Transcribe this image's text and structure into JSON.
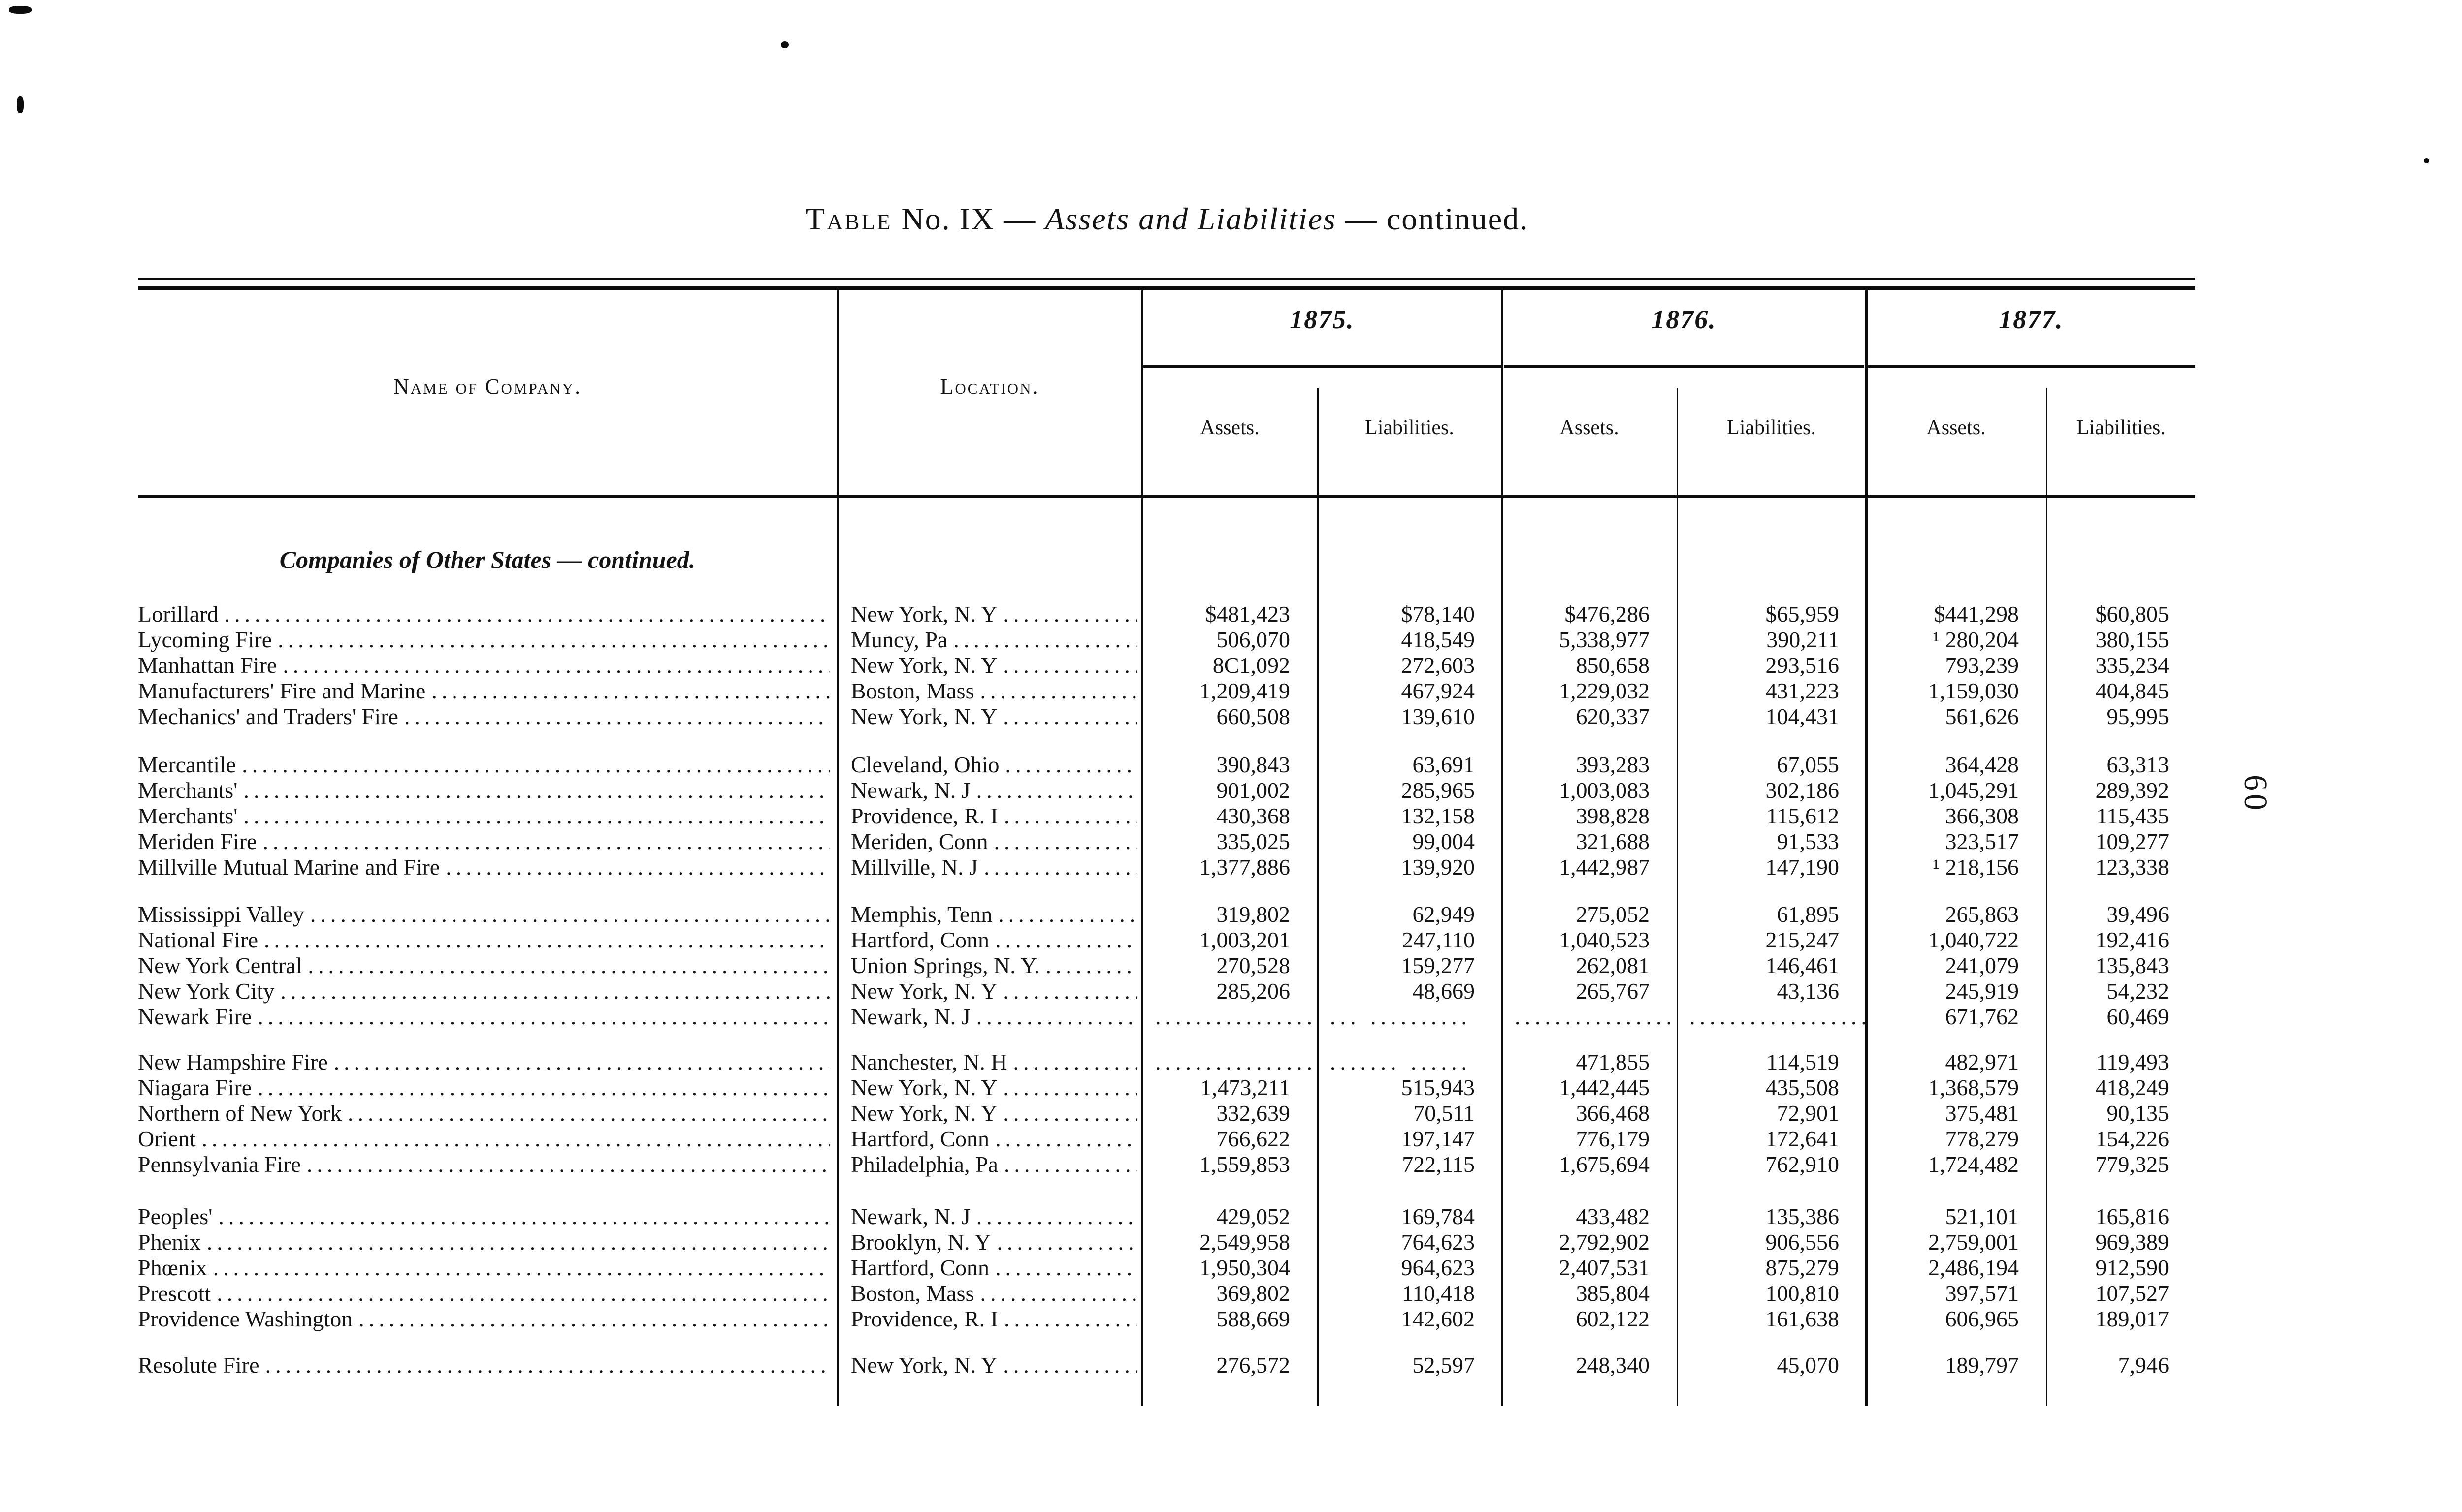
{
  "page": {
    "folio": "60"
  },
  "title": {
    "word_table": "Table",
    "rest_roman": "No. IX —",
    "italic_part": "Assets and Liabilities",
    "continued": "— continued."
  },
  "header": {
    "name_col": "Name of Company.",
    "location_col": "Location.",
    "years": [
      "1875.",
      "1876.",
      "1877."
    ],
    "assets_label": "Assets.",
    "liabilities_label": "Liabilities."
  },
  "section_heading": "Companies of Other States — continued.",
  "table": {
    "columns": [
      "Name of Company.",
      "Location.",
      "1875 Assets",
      "1875 Liabilities",
      "1876 Assets",
      "1876 Liabilities",
      "1877 Assets",
      "1877 Liabilities"
    ],
    "groups": [
      {
        "rows": [
          {
            "name": "Lorillard",
            "location": "New York, N. Y",
            "values": [
              "$481,423",
              "$78,140",
              "$476,286",
              "$65,959",
              "$441,298",
              "$60,805"
            ]
          },
          {
            "name": "Lycoming Fire",
            "location": "Muncy, Pa",
            "values": [
              "506,070",
              "418,549",
              "5,338,977",
              "390,211",
              "¹ 280,204",
              "380,155"
            ]
          },
          {
            "name": "Manhattan Fire",
            "location": "New York, N. Y",
            "values": [
              "8C1,092",
              "272,603",
              "850,658",
              "293,516",
              "793,239",
              "335,234"
            ]
          },
          {
            "name": "Manufacturers' Fire and Marine",
            "location": "Boston, Mass",
            "values": [
              "1,209,419",
              "467,924",
              "1,229,032",
              "431,223",
              "1,159,030",
              "404,845"
            ]
          },
          {
            "name": "Mechanics' and Traders' Fire",
            "location": "New York, N. Y",
            "values": [
              "660,508",
              "139,610",
              "620,337",
              "104,431",
              "561,626",
              "95,995"
            ]
          }
        ]
      },
      {
        "rows": [
          {
            "name": "Mercantile",
            "location": "Cleveland, Ohio",
            "values": [
              "390,843",
              "63,691",
              "393,283",
              "67,055",
              "364,428",
              "63,313"
            ]
          },
          {
            "name": "Merchants'",
            "location": "Newark, N. J",
            "values": [
              "901,002",
              "285,965",
              "1,003,083",
              "302,186",
              "1,045,291",
              "289,392"
            ]
          },
          {
            "name": "Merchants'",
            "location": "Providence, R. I",
            "values": [
              "430,368",
              "132,158",
              "398,828",
              "115,612",
              "366,308",
              "115,435"
            ]
          },
          {
            "name": "Meriden Fire",
            "location": "Meriden, Conn",
            "values": [
              "335,025",
              "99,004",
              "321,688",
              "91,533",
              "323,517",
              "109,277"
            ]
          },
          {
            "name": "Millville Mutual Marine and Fire",
            "location": "Millville, N. J",
            "values": [
              "1,377,886",
              "139,920",
              "1,442,987",
              "147,190",
              "¹ 218,156",
              "123,338"
            ]
          }
        ]
      },
      {
        "rows": [
          {
            "name": "Mississippi Valley",
            "location": "Memphis, Tenn",
            "values": [
              "319,802",
              "62,949",
              "275,052",
              "61,895",
              "265,863",
              "39,496"
            ]
          },
          {
            "name": "National Fire",
            "location": "Hartford, Conn",
            "values": [
              "1,003,201",
              "247,110",
              "1,040,523",
              "215,247",
              "1,040,722",
              "192,416"
            ]
          },
          {
            "name": "New York Central",
            "location": "Union Springs, N. Y.",
            "values": [
              "270,528",
              "159,277",
              "262,081",
              "146,461",
              "241,079",
              "135,843"
            ]
          },
          {
            "name": "New York City",
            "location": "New York, N. Y",
            "values": [
              "285,206",
              "48,669",
              "265,767",
              "43,136",
              "245,919",
              "54,232"
            ]
          },
          {
            "name": "Newark Fire",
            "location": "Newark, N. J",
            "values": [
              "......................",
              "... ..........",
              "......................",
              "....................",
              "671,762",
              "60,469"
            ]
          }
        ]
      },
      {
        "rows": [
          {
            "name": "New Hampshire Fire",
            "location": "Nanchester, N. H",
            "values": [
              "....................",
              "....... ......",
              "471,855",
              "114,519",
              "482,971",
              "119,493"
            ]
          },
          {
            "name": "Niagara Fire",
            "location": "New York, N. Y",
            "values": [
              "1,473,211",
              "515,943",
              "1,442,445",
              "435,508",
              "1,368,579",
              "418,249"
            ]
          },
          {
            "name": "Northern of New York",
            "location": "New York, N. Y",
            "values": [
              "332,639",
              "70,511",
              "366,468",
              "72,901",
              "375,481",
              "90,135"
            ]
          },
          {
            "name": "Orient",
            "location": "Hartford, Conn",
            "values": [
              "766,622",
              "197,147",
              "776,179",
              "172,641",
              "778,279",
              "154,226"
            ]
          },
          {
            "name": "Pennsylvania Fire",
            "location": "Philadelphia, Pa",
            "values": [
              "1,559,853",
              "722,115",
              "1,675,694",
              "762,910",
              "1,724,482",
              "779,325"
            ]
          }
        ]
      },
      {
        "rows": [
          {
            "name": "Peoples'",
            "location": "Newark, N. J",
            "values": [
              "429,052",
              "169,784",
              "433,482",
              "135,386",
              "521,101",
              "165,816"
            ]
          },
          {
            "name": "Phenix",
            "location": "Brooklyn, N. Y",
            "values": [
              "2,549,958",
              "764,623",
              "2,792,902",
              "906,556",
              "2,759,001",
              "969,389"
            ]
          },
          {
            "name": "Phœnix",
            "location": "Hartford, Conn",
            "values": [
              "1,950,304",
              "964,623",
              "2,407,531",
              "875,279",
              "2,486,194",
              "912,590"
            ]
          },
          {
            "name": "Prescott",
            "location": "Boston, Mass",
            "values": [
              "369,802",
              "110,418",
              "385,804",
              "100,810",
              "397,571",
              "107,527"
            ]
          },
          {
            "name": "Providence Washington",
            "location": "Providence, R. I",
            "values": [
              "588,669",
              "142,602",
              "602,122",
              "161,638",
              "606,965",
              "189,017"
            ]
          }
        ]
      },
      {
        "rows": [
          {
            "name": "Resolute Fire",
            "location": "New York, N. Y",
            "values": [
              "276,572",
              "52,597",
              "248,340",
              "45,070",
              "189,797",
              "7,946"
            ]
          }
        ]
      }
    ]
  }
}
